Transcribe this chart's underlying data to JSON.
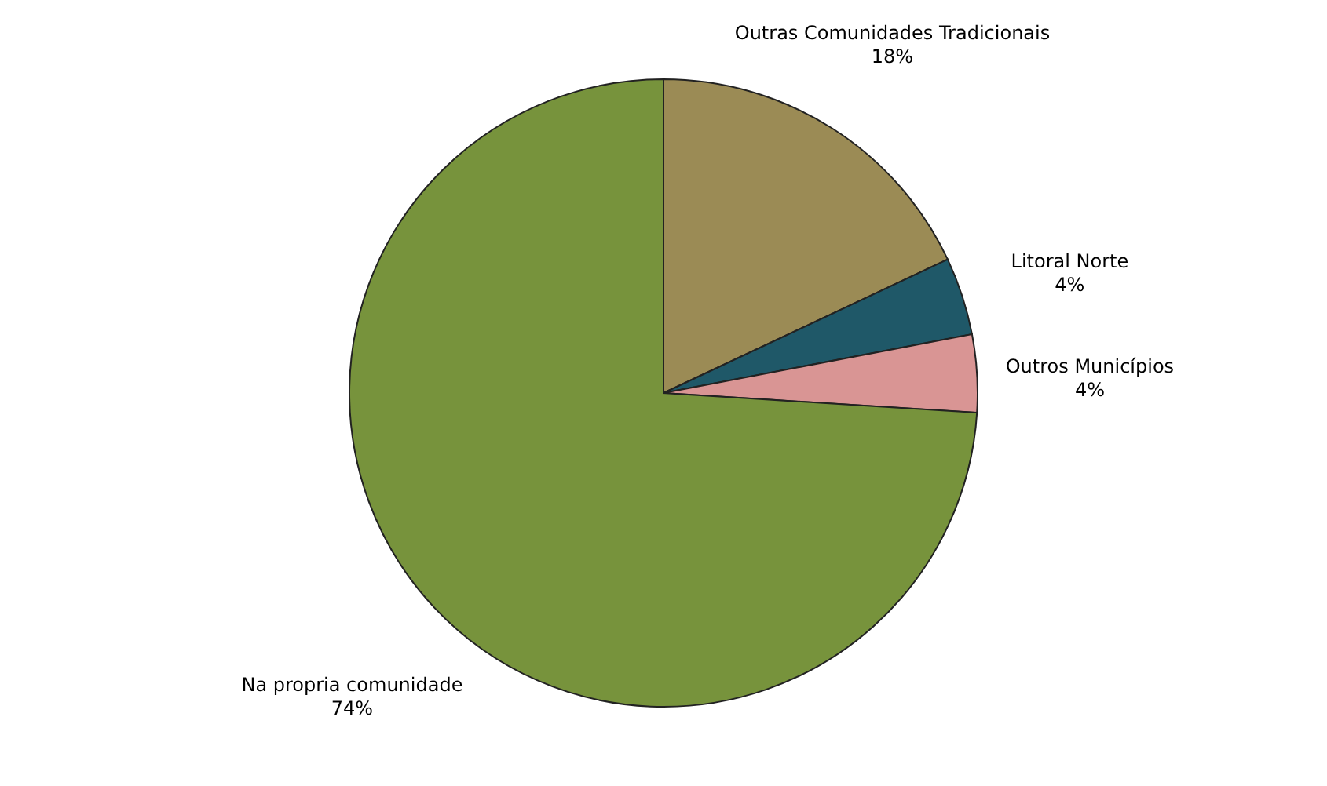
{
  "chart_data": {
    "type": "pie",
    "categories": [
      "Outras Comunidades Tradicionais",
      "Litoral Norte",
      "Outros Municípios",
      "Na propria comunidade"
    ],
    "values": [
      18,
      4,
      4,
      74
    ],
    "value_labels": [
      "18%",
      "4%",
      "4%",
      "74%"
    ],
    "colors": [
      "#9b8b55",
      "#1f5868",
      "#d99594",
      "#77933c"
    ]
  }
}
